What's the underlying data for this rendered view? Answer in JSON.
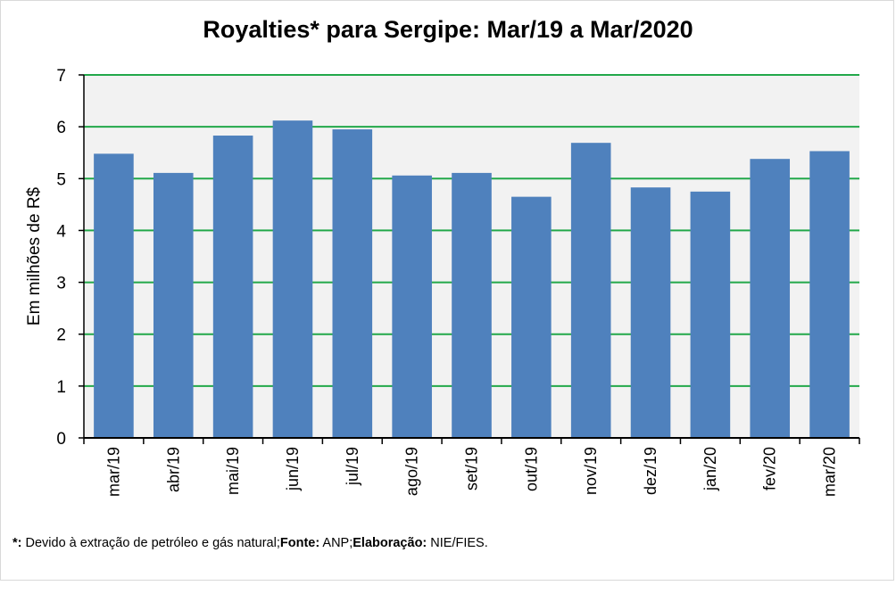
{
  "chart_data": {
    "type": "bar",
    "title": "Royalties* para Sergipe: Mar/19 a Mar/2020",
    "xlabel": "",
    "ylabel": "Em milhões de R$",
    "ylim": [
      0,
      7
    ],
    "yticks": [
      "0",
      "1",
      "2",
      "3",
      "4",
      "5",
      "6",
      "7"
    ],
    "categories": [
      "mar/19",
      "abr/19",
      "mai/19",
      "jun/19",
      "jul/19",
      "ago/19",
      "set/19",
      "out/19",
      "nov/19",
      "dez/19",
      "jan/20",
      "fev/20",
      "mar/20"
    ],
    "values": [
      5.48,
      5.11,
      5.83,
      6.12,
      5.95,
      5.06,
      5.11,
      4.65,
      5.69,
      4.83,
      4.75,
      5.38,
      5.53
    ],
    "grid": true,
    "colors": {
      "bar": "#4f81bd",
      "plot_bg": "#f2f2f2",
      "grid": "#22a84a",
      "axis": "#000000"
    }
  },
  "footnote": {
    "marker": "*:",
    "note": " Devido à extração de petróleo e gás natural;",
    "source_label": "Fonte:",
    "source_value": " ANP;",
    "credit_label": "Elaboração:",
    "credit_value": " NIE/FIES."
  }
}
